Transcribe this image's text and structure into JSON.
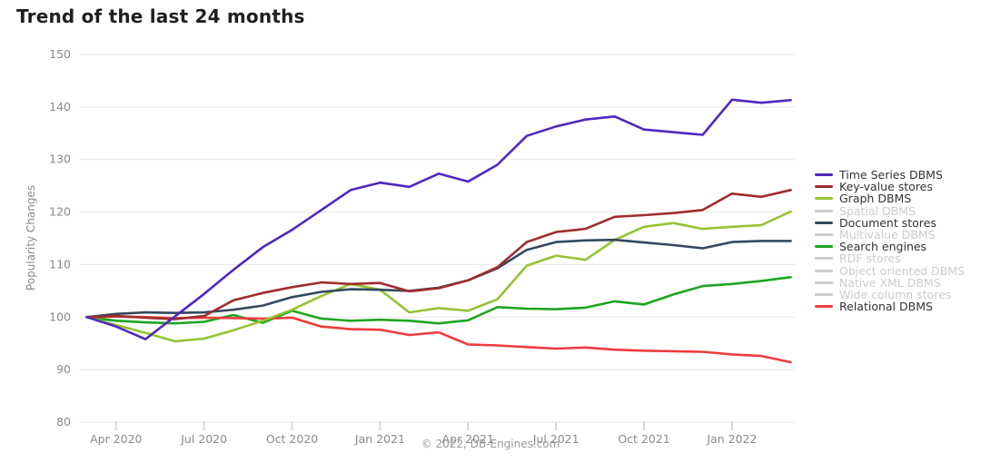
{
  "title": "Trend of the last 24 months",
  "footer_credit": "© 2022, DB-Engines.com",
  "chart_data": {
    "type": "line",
    "title": "Trend of the last 24 months",
    "xlabel": "",
    "ylabel": "Popularity Changes",
    "ylim": [
      80,
      150
    ],
    "yticks": [
      80,
      90,
      100,
      110,
      120,
      130,
      140,
      150
    ],
    "grid": "horizontal",
    "legend_position": "right",
    "x": [
      "Mar 2020",
      "Apr 2020",
      "May 2020",
      "Jun 2020",
      "Jul 2020",
      "Aug 2020",
      "Sep 2020",
      "Oct 2020",
      "Nov 2020",
      "Dec 2020",
      "Jan 2021",
      "Feb 2021",
      "Mar 2021",
      "Apr 2021",
      "May 2021",
      "Jun 2021",
      "Jul 2021",
      "Aug 2021",
      "Sep 2021",
      "Oct 2021",
      "Nov 2021",
      "Dec 2021",
      "Jan 2022",
      "Feb 2022",
      "Mar 2022"
    ],
    "x_tick_labels": [
      "Apr 2020",
      "Jul 2020",
      "Oct 2020",
      "Jan 2021",
      "Apr 2021",
      "Jul 2021",
      "Oct 2021",
      "Jan 2022"
    ],
    "x_tick_indices": [
      1,
      4,
      7,
      10,
      13,
      16,
      19,
      22
    ],
    "series": [
      {
        "name": "Search engines",
        "color": "#1ea51e",
        "values": [
          100,
          99.3,
          99.0,
          98.8,
          99.1,
          100.4,
          98.9,
          101.2,
          99.7,
          99.3,
          99.5,
          99.3,
          98.8,
          99.4,
          101.9,
          101.6,
          101.5,
          101.8,
          103.0,
          102.4,
          104.3,
          105.9,
          106.3,
          106.9,
          107.6
        ]
      },
      {
        "name": "Relational DBMS",
        "color": "#ee3c3c",
        "values": [
          100,
          100.1,
          100.0,
          99.8,
          99.9,
          99.8,
          99.7,
          99.9,
          98.2,
          97.7,
          97.6,
          96.6,
          97.1,
          94.8,
          94.6,
          94.3,
          94.0,
          94.2,
          93.8,
          93.6,
          93.5,
          93.4,
          92.9,
          92.6,
          91.4
        ]
      },
      {
        "name": "Graph DBMS",
        "color": "#96c332",
        "values": [
          100,
          98.5,
          97.0,
          95.4,
          95.9,
          97.5,
          99.3,
          101.4,
          104.0,
          106.3,
          105.2,
          100.9,
          101.7,
          101.2,
          103.4,
          109.8,
          111.7,
          110.9,
          114.7,
          117.2,
          117.9,
          116.8,
          117.2,
          117.5,
          120.1
        ]
      },
      {
        "name": "Document stores",
        "color": "#34485e",
        "values": [
          100,
          100.6,
          100.9,
          100.8,
          100.9,
          101.4,
          102.2,
          103.8,
          104.8,
          105.3,
          105.2,
          105.0,
          105.6,
          107.0,
          109.3,
          112.8,
          114.3,
          114.6,
          114.7,
          114.2,
          113.7,
          113.1,
          114.3,
          114.5,
          114.5
        ]
      },
      {
        "name": "Key-value stores",
        "color": "#a02d2d",
        "values": [
          100,
          100.2,
          99.9,
          99.6,
          100.2,
          103.2,
          104.6,
          105.7,
          106.6,
          106.3,
          106.5,
          104.9,
          105.5,
          107.0,
          109.5,
          114.3,
          116.2,
          116.8,
          119.1,
          119.4,
          119.8,
          120.4,
          123.5,
          122.9,
          124.2
        ]
      },
      {
        "name": "Time Series DBMS",
        "color": "#5028be",
        "values": [
          100,
          98.2,
          95.8,
          100.1,
          104.4,
          109.0,
          113.3,
          116.6,
          120.4,
          124.2,
          125.6,
          124.8,
          127.3,
          125.8,
          129.0,
          134.5,
          136.3,
          137.6,
          138.2,
          135.7,
          135.2,
          134.7,
          141.4,
          140.8,
          141.3
        ]
      }
    ],
    "legend": [
      {
        "label": "Time Series DBMS",
        "color": "#5028be",
        "active": true
      },
      {
        "label": "Key-value stores",
        "color": "#a02d2d",
        "active": true
      },
      {
        "label": "Graph DBMS",
        "color": "#96c332",
        "active": true
      },
      {
        "label": "Spatial DBMS",
        "color": "#cccccc",
        "active": false
      },
      {
        "label": "Document stores",
        "color": "#34485e",
        "active": true
      },
      {
        "label": "Multivalue DBMS",
        "color": "#cccccc",
        "active": false
      },
      {
        "label": "Search engines",
        "color": "#1ea51e",
        "active": true
      },
      {
        "label": "RDF stores",
        "color": "#cccccc",
        "active": false
      },
      {
        "label": "Object oriented DBMS",
        "color": "#cccccc",
        "active": false
      },
      {
        "label": "Native XML DBMS",
        "color": "#cccccc",
        "active": false
      },
      {
        "label": "Wide column stores",
        "color": "#cccccc",
        "active": false
      },
      {
        "label": "Relational DBMS",
        "color": "#ee3c3c",
        "active": true
      }
    ],
    "colors": {
      "grid": "#e7e7e7",
      "tick": "#c2d1dc",
      "axis_text": "#8a8a8a",
      "active_label": "#333333",
      "inactive_label": "#cccccc"
    }
  }
}
